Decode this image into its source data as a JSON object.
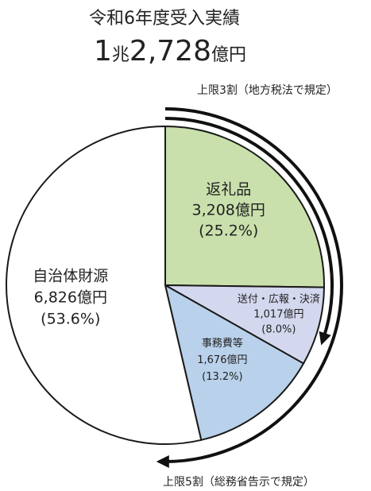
{
  "title": "令和6年度受入実績",
  "total": {
    "head": "1",
    "unit1": "兆",
    "mid": "2,728",
    "unit2": "億円"
  },
  "colors": {
    "gift": "#c9e0ac",
    "shipping": "#d4d8ee",
    "admin": "#b9d1ea",
    "local": "#ffffff",
    "stroke": "#1a1a1a",
    "arrow": "#111111"
  },
  "notes": {
    "limit3": "上限3割（地方税法で規定）",
    "limit5": "上限5割（総務省告示で規定）"
  },
  "chart_data": {
    "type": "pie",
    "title": "令和6年度受入実績",
    "total": "1兆2,728億円",
    "start": "12 o'clock, clockwise",
    "slices": [
      {
        "name": "返礼品",
        "value_text": "3,208億円",
        "pct_text": "(25.2%)",
        "value": 3208,
        "percent": 25.2,
        "color": "#c9e0ac"
      },
      {
        "name": "送付・広報・決済",
        "value_text": "1,017億円",
        "pct_text": "(8.0%)",
        "value": 1017,
        "percent": 8.0,
        "color": "#d4d8ee"
      },
      {
        "name": "事務費等",
        "value_text": "1,676億円",
        "pct_text": "(13.2%)",
        "value": 1676,
        "percent": 13.2,
        "color": "#b9d1ea"
      },
      {
        "name": "自治体財源",
        "value_text": "6,826億円",
        "pct_text": "(53.6%)",
        "value": 6826,
        "percent": 53.6,
        "color": "#ffffff"
      }
    ],
    "annotations": [
      {
        "text": "上限3割（地方税法で規定）",
        "spans_percent": 30
      },
      {
        "text": "上限5割（総務省告示で規定）",
        "spans_percent": 50
      }
    ]
  }
}
